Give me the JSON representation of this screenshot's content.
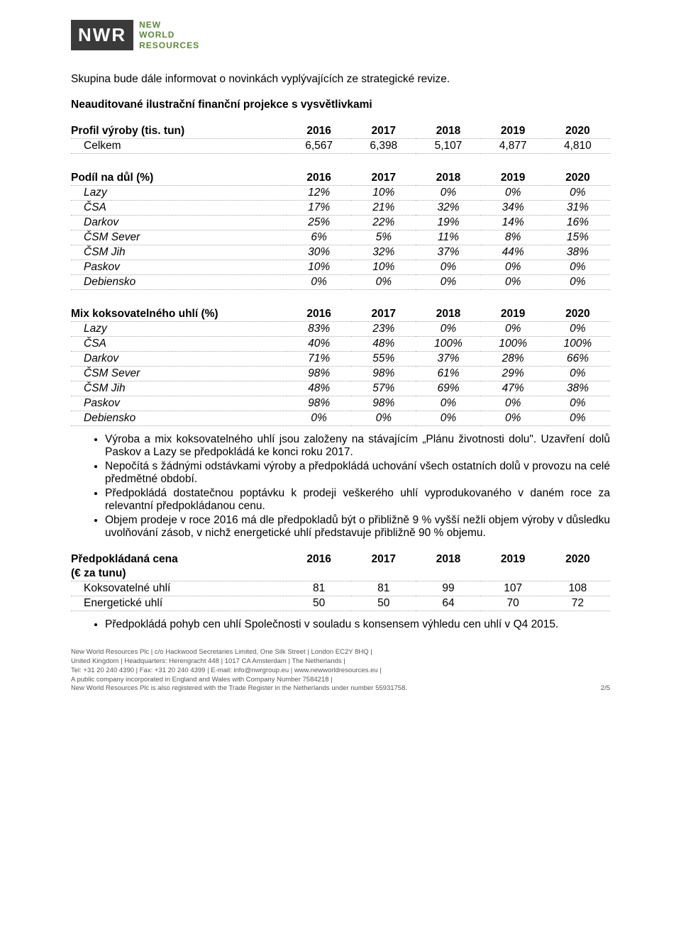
{
  "logo": {
    "mark": "NWR",
    "line1": "NEW",
    "line2": "WORLD",
    "line3": "RESOURCES"
  },
  "intro_line": "Skupina bude dále informovat o novinkách vyplývajících ze strategické revize.",
  "subtitle": "Neauditované ilustrační finanční projekce s vysvětlivkami",
  "t1": {
    "header": "Profil výroby (tis. tun)",
    "years": [
      "2016",
      "2017",
      "2018",
      "2019",
      "2020"
    ],
    "row": {
      "label": "Celkem",
      "v": [
        "6,567",
        "6,398",
        "5,107",
        "4,877",
        "4,810"
      ]
    }
  },
  "t2": {
    "header": "Podíl na důl (%)",
    "years": [
      "2016",
      "2017",
      "2018",
      "2019",
      "2020"
    ],
    "rows": [
      {
        "label": "Lazy",
        "v": [
          "12%",
          "10%",
          "0%",
          "0%",
          "0%"
        ]
      },
      {
        "label": "ČSA",
        "v": [
          "17%",
          "21%",
          "32%",
          "34%",
          "31%"
        ]
      },
      {
        "label": "Darkov",
        "v": [
          "25%",
          "22%",
          "19%",
          "14%",
          "16%"
        ]
      },
      {
        "label": "ČSM Sever",
        "v": [
          "6%",
          "5%",
          "11%",
          "8%",
          "15%"
        ]
      },
      {
        "label": "ČSM Jih",
        "v": [
          "30%",
          "32%",
          "37%",
          "44%",
          "38%"
        ]
      },
      {
        "label": "Paskov",
        "v": [
          "10%",
          "10%",
          "0%",
          "0%",
          "0%"
        ]
      },
      {
        "label": "Debiensko",
        "v": [
          "0%",
          "0%",
          "0%",
          "0%",
          "0%"
        ]
      }
    ]
  },
  "t3": {
    "header": "Mix koksovatelného uhlí (%)",
    "years": [
      "2016",
      "2017",
      "2018",
      "2019",
      "2020"
    ],
    "rows": [
      {
        "label": "Lazy",
        "v": [
          "83%",
          "23%",
          "0%",
          "0%",
          "0%"
        ]
      },
      {
        "label": "ČSA",
        "v": [
          "40%",
          "48%",
          "100%",
          "100%",
          "100%"
        ]
      },
      {
        "label": "Darkov",
        "v": [
          "71%",
          "55%",
          "37%",
          "28%",
          "66%"
        ]
      },
      {
        "label": "ČSM Sever",
        "v": [
          "98%",
          "98%",
          "61%",
          "29%",
          "0%"
        ]
      },
      {
        "label": "ČSM Jih",
        "v": [
          "48%",
          "57%",
          "69%",
          "47%",
          "38%"
        ]
      },
      {
        "label": "Paskov",
        "v": [
          "98%",
          "98%",
          "0%",
          "0%",
          "0%"
        ]
      },
      {
        "label": "Debiensko",
        "v": [
          "0%",
          "0%",
          "0%",
          "0%",
          "0%"
        ]
      }
    ]
  },
  "bullets1": [
    "Výroba a mix koksovatelného uhlí jsou založeny na stávajícím „Plánu životnosti dolu\". Uzavření dolů Paskov a Lazy se předpokládá ke konci roku 2017.",
    "Nepočítá s žádnými odstávkami výroby a předpokládá uchování všech ostatních dolů v provozu na celé předmětné období.",
    "Předpokládá dostatečnou poptávku k prodeji veškerého uhlí vyprodukovaného v daném roce za relevantní předpokládanou cenu.",
    "Objem prodeje v roce 2016 má dle předpokladů být o přibližně 9 % vyšší nežli objem výroby v důsledku uvolňování zásob, v nichž energetické uhlí představuje přibližně 90 % objemu."
  ],
  "t4": {
    "header1": "Předpokládaná cena",
    "header2": "(€ za tunu)",
    "years": [
      "2016",
      "2017",
      "2018",
      "2019",
      "2020"
    ],
    "rows": [
      {
        "label": "Koksovatelné uhlí",
        "v": [
          "81",
          "81",
          "99",
          "107",
          "108"
        ]
      },
      {
        "label": "Energetické uhlí",
        "v": [
          "50",
          "50",
          "64",
          "70",
          "72"
        ]
      }
    ]
  },
  "bullets2": [
    "Předpokládá pohyb cen uhlí Společnosti v souladu s konsensem výhledu cen uhlí v Q4 2015."
  ],
  "footer": {
    "l1": "New World Resources Plc | c/o Hackwood Secretaries Limited, One Silk Street | London EC2Y 8HQ |",
    "l2": "United Kingdom | Headquarters: Herengracht 448 | 1017 CA Amsterdam | The Netherlands |",
    "l3": "Tel: +31 20 240 4390 | Fax: +31 20 240 4399 | E-mail: info@nwrgroup.eu | www.newworldresources.eu |",
    "l4": "A public company incorporated in England and Wales with Company Number 7584218 |",
    "l5": "New World Resources Plc is also registered with the Trade Register in the Netherlands under number 55931758.",
    "page": "2/5"
  },
  "col_widths": {
    "label": "40%",
    "year": "12%"
  }
}
